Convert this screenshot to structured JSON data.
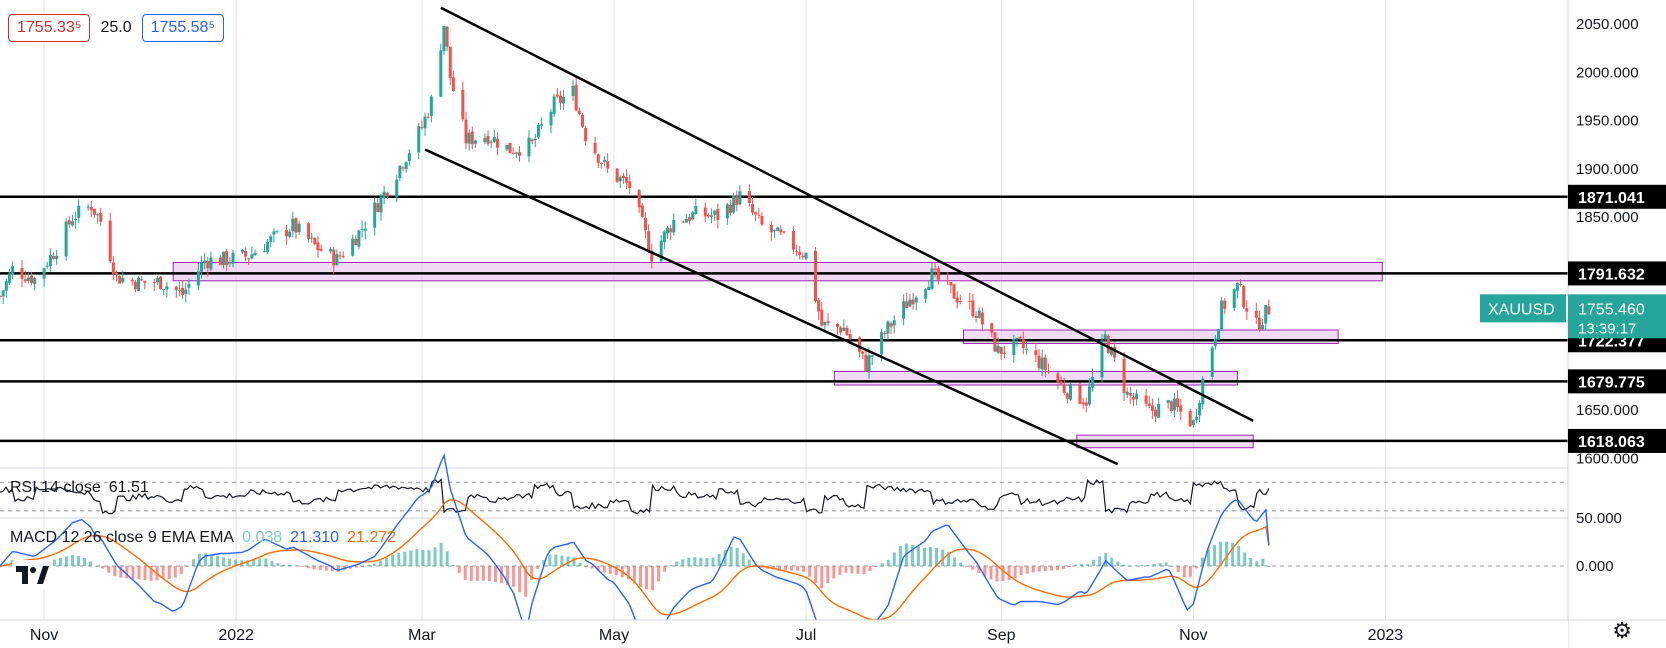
{
  "header": {
    "sell_price": "1755.33⁵",
    "spread": "25.0",
    "buy_price": "1755.58⁵"
  },
  "price_axis": {
    "ticks": [
      "2050.000",
      "2000.000",
      "1950.000",
      "1900.000",
      "1850.000",
      "1650.000",
      "1600.000"
    ]
  },
  "level_labels": [
    {
      "text": "1871.041",
      "value": 1871.041
    },
    {
      "text": "1791.632",
      "value": 1791.632
    },
    {
      "text": "1722.377",
      "value": 1722.377
    },
    {
      "text": "1679.775",
      "value": 1679.775
    },
    {
      "text": "1618.063",
      "value": 1618.063
    }
  ],
  "symbol_badge": {
    "symbol": "XAUUSD",
    "price": "1755.460",
    "countdown": "13:39:17"
  },
  "rsi": {
    "title": "RSI 14 close",
    "value": "61.51"
  },
  "macd": {
    "title": "MACD 12 26 close 9 EMA EMA",
    "hist_value": "0.038",
    "macd_value": "21.310",
    "signal_value": "21.272",
    "ticks": [
      "50.000",
      "0.000"
    ]
  },
  "time_axis": [
    "Nov",
    "2022",
    "Mar",
    "May",
    "Jul",
    "Sep",
    "Nov",
    "2023"
  ],
  "colors": {
    "up": "#26a69a",
    "down": "#ef5350",
    "zone_fill": "#e1bee7",
    "zone_border": "#9c27b0",
    "macd": "#2962ff",
    "signal": "#ff6d00",
    "badge": "#26a69a",
    "grid": "#e0e3eb"
  },
  "chart_data": {
    "type": "candlestick",
    "symbol": "XAUUSD",
    "x_range": [
      "2021-10-18",
      "2023-02-28"
    ],
    "ylim": [
      1590,
      2075
    ],
    "horizontal_levels": [
      1871.041,
      1791.632,
      1722.377,
      1679.775,
      1618.063
    ],
    "zones": [
      {
        "from": "2021-12-12",
        "to": "2022-12-31",
        "low": 1784,
        "high": 1803
      },
      {
        "from": "2022-08-20",
        "to": "2022-12-17",
        "low": 1719,
        "high": 1733
      },
      {
        "from": "2022-07-10",
        "to": "2022-11-15",
        "low": 1676,
        "high": 1690
      },
      {
        "from": "2022-09-25",
        "to": "2022-11-20",
        "low": 1611,
        "high": 1624
      }
    ],
    "trendlines": [
      {
        "points": [
          [
            "2022-03-07",
            2067
          ],
          [
            "2022-11-20",
            1639
          ]
        ]
      },
      {
        "points": [
          [
            "2022-03-02",
            1920
          ],
          [
            "2022-10-08",
            1594
          ]
        ]
      }
    ],
    "series": [
      {
        "name": "XAUUSD",
        "points": [
          [
            "2021-10-18",
            1768
          ],
          [
            "2021-10-22",
            1796
          ],
          [
            "2021-10-29",
            1786
          ],
          [
            "2021-11-05",
            1818
          ],
          [
            "2021-11-10",
            1850
          ],
          [
            "2021-11-16",
            1862
          ],
          [
            "2021-11-19",
            1846
          ],
          [
            "2021-11-24",
            1788
          ],
          [
            "2021-12-01",
            1782
          ],
          [
            "2021-12-08",
            1783
          ],
          [
            "2021-12-15",
            1770
          ],
          [
            "2021-12-22",
            1805
          ],
          [
            "2021-12-29",
            1806
          ],
          [
            "2022-01-05",
            1810
          ],
          [
            "2022-01-12",
            1826
          ],
          [
            "2022-01-19",
            1841
          ],
          [
            "2022-01-26",
            1820
          ],
          [
            "2022-02-02",
            1806
          ],
          [
            "2022-02-09",
            1834
          ],
          [
            "2022-02-16",
            1869
          ],
          [
            "2022-02-23",
            1908
          ],
          [
            "2022-03-01",
            1943
          ],
          [
            "2022-03-04",
            1970
          ],
          [
            "2022-03-08",
            2050
          ],
          [
            "2022-03-10",
            1995
          ],
          [
            "2022-03-15",
            1930
          ],
          [
            "2022-03-22",
            1935
          ],
          [
            "2022-03-29",
            1920
          ],
          [
            "2022-04-05",
            1925
          ],
          [
            "2022-04-12",
            1967
          ],
          [
            "2022-04-18",
            1980
          ],
          [
            "2022-04-22",
            1935
          ],
          [
            "2022-04-29",
            1898
          ],
          [
            "2022-05-06",
            1882
          ],
          [
            "2022-05-13",
            1811
          ],
          [
            "2022-05-20",
            1846
          ],
          [
            "2022-05-27",
            1853
          ],
          [
            "2022-06-03",
            1851
          ],
          [
            "2022-06-10",
            1872
          ],
          [
            "2022-06-17",
            1840
          ],
          [
            "2022-06-24",
            1827
          ],
          [
            "2022-07-01",
            1811
          ],
          [
            "2022-07-06",
            1738
          ],
          [
            "2022-07-13",
            1735
          ],
          [
            "2022-07-20",
            1697
          ],
          [
            "2022-07-27",
            1735
          ],
          [
            "2022-08-03",
            1765
          ],
          [
            "2022-08-10",
            1790
          ],
          [
            "2022-08-17",
            1770
          ],
          [
            "2022-08-24",
            1752
          ],
          [
            "2022-08-31",
            1711
          ],
          [
            "2022-09-07",
            1717
          ],
          [
            "2022-09-14",
            1697
          ],
          [
            "2022-09-21",
            1672
          ],
          [
            "2022-09-28",
            1660
          ],
          [
            "2022-10-04",
            1725
          ],
          [
            "2022-10-11",
            1666
          ],
          [
            "2022-10-18",
            1649
          ],
          [
            "2022-10-25",
            1656
          ],
          [
            "2022-11-01",
            1636
          ],
          [
            "2022-11-04",
            1681
          ],
          [
            "2022-11-10",
            1755
          ],
          [
            "2022-11-15",
            1778
          ],
          [
            "2022-11-21",
            1737
          ],
          [
            "2022-11-25",
            1755
          ]
        ]
      }
    ],
    "rsi": {
      "value": 61.51,
      "levels": [
        70,
        30
      ]
    },
    "macd": {
      "macd": 21.31,
      "signal": 21.272,
      "histogram": 0.038
    }
  }
}
